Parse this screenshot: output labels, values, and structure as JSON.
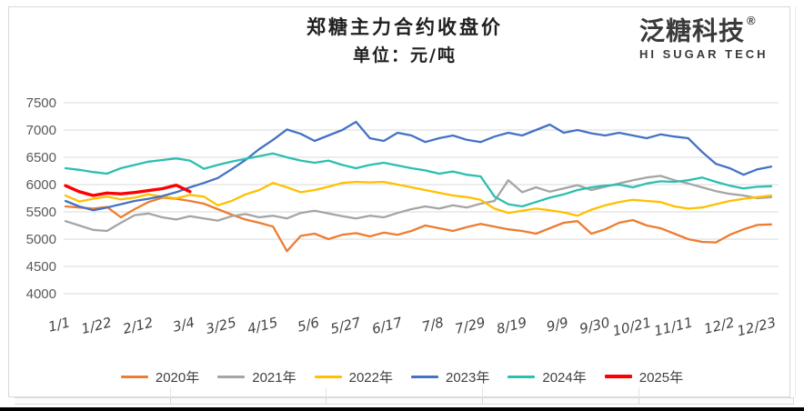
{
  "header": {
    "title": "郑糖主力合约收盘价",
    "subtitle": "单位：元/吨"
  },
  "logo": {
    "cn": "泛糖科技",
    "reg": "®",
    "en": "HI SUGAR TECH"
  },
  "colors": {
    "gridline": "#d9d9d9",
    "axis_label": "#595959",
    "x_label": "#444444",
    "legend_label": "#404040"
  },
  "chart_data": {
    "type": "line",
    "title": "郑糖主力合约收盘价",
    "unit_label": "单位：元/吨",
    "xlabel": "",
    "ylabel": "",
    "ylim": [
      4000,
      7500
    ],
    "yticks": [
      7500,
      7000,
      6500,
      6000,
      5500,
      5000,
      4500,
      4000
    ],
    "xticklabels": [
      "1/1",
      "1/22",
      "2/12",
      "3/4",
      "3/25",
      "4/15",
      "5/6",
      "5/27",
      "6/17",
      "7/8",
      "7/29",
      "8/19",
      "9/9",
      "9/30",
      "10/21",
      "11/11",
      "12/2",
      "12/23"
    ],
    "grid": "horizontal",
    "legend_position": "bottom",
    "sampling": "weekly closing price, Jan 1 to Dec 31",
    "series": [
      {
        "name": "2020年",
        "color": "#ED7D31",
        "linewidth": 2.3,
        "values": [
          5600,
          5580,
          5560,
          5590,
          5400,
          5550,
          5680,
          5760,
          5740,
          5700,
          5650,
          5550,
          5450,
          5360,
          5300,
          5230,
          4780,
          5060,
          5100,
          5000,
          5080,
          5110,
          5050,
          5120,
          5080,
          5150,
          5250,
          5200,
          5150,
          5220,
          5280,
          5230,
          5180,
          5150,
          5100,
          5200,
          5300,
          5330,
          5100,
          5180,
          5300,
          5350,
          5250,
          5200,
          5100,
          5000,
          4950,
          4940,
          5080,
          5180,
          5260,
          5270
        ]
      },
      {
        "name": "2021年",
        "color": "#A5A5A5",
        "linewidth": 2.3,
        "values": [
          5330,
          5250,
          5170,
          5150,
          5300,
          5440,
          5470,
          5400,
          5360,
          5420,
          5380,
          5340,
          5420,
          5460,
          5400,
          5430,
          5380,
          5480,
          5520,
          5470,
          5420,
          5380,
          5430,
          5400,
          5480,
          5550,
          5600,
          5560,
          5620,
          5580,
          5650,
          5700,
          6080,
          5860,
          5950,
          5870,
          5930,
          5990,
          5900,
          5960,
          6020,
          6080,
          6130,
          6160,
          6080,
          6020,
          5950,
          5880,
          5830,
          5800,
          5750,
          5770
        ]
      },
      {
        "name": "2022年",
        "color": "#FFC000",
        "linewidth": 2.3,
        "values": [
          5800,
          5690,
          5740,
          5780,
          5730,
          5760,
          5820,
          5780,
          5750,
          5810,
          5780,
          5620,
          5700,
          5820,
          5900,
          6030,
          5950,
          5860,
          5900,
          5960,
          6030,
          6050,
          6040,
          6050,
          6000,
          5950,
          5900,
          5850,
          5800,
          5770,
          5720,
          5560,
          5480,
          5520,
          5560,
          5530,
          5490,
          5430,
          5540,
          5620,
          5680,
          5720,
          5700,
          5680,
          5600,
          5560,
          5580,
          5640,
          5700,
          5740,
          5770,
          5800
        ]
      },
      {
        "name": "2023年",
        "color": "#4472C4",
        "linewidth": 2.3,
        "values": [
          5700,
          5600,
          5530,
          5580,
          5640,
          5700,
          5740,
          5790,
          5860,
          5950,
          6030,
          6120,
          6280,
          6450,
          6650,
          6820,
          7010,
          6930,
          6800,
          6900,
          7000,
          7150,
          6850,
          6800,
          6950,
          6900,
          6780,
          6850,
          6900,
          6820,
          6780,
          6880,
          6950,
          6900,
          7000,
          7100,
          6950,
          7000,
          6940,
          6900,
          6950,
          6900,
          6850,
          6920,
          6880,
          6850,
          6600,
          6380,
          6300,
          6180,
          6280,
          6330
        ]
      },
      {
        "name": "2024年",
        "color": "#2BBFB0",
        "linewidth": 2.3,
        "values": [
          6300,
          6270,
          6230,
          6200,
          6300,
          6360,
          6420,
          6450,
          6480,
          6440,
          6290,
          6360,
          6420,
          6470,
          6520,
          6570,
          6500,
          6440,
          6400,
          6440,
          6360,
          6300,
          6360,
          6400,
          6350,
          6300,
          6260,
          6200,
          6240,
          6180,
          6150,
          5780,
          5640,
          5600,
          5680,
          5760,
          5820,
          5900,
          5950,
          5980,
          6000,
          5950,
          6020,
          6060,
          6050,
          6080,
          6130,
          6050,
          5980,
          5930,
          5960,
          5970
        ]
      },
      {
        "name": "2025年",
        "color": "#FF0000",
        "linewidth": 3.4,
        "values": [
          5980,
          5870,
          5800,
          5845,
          5830,
          5855,
          5890,
          5925,
          5990,
          5870
        ]
      }
    ]
  }
}
